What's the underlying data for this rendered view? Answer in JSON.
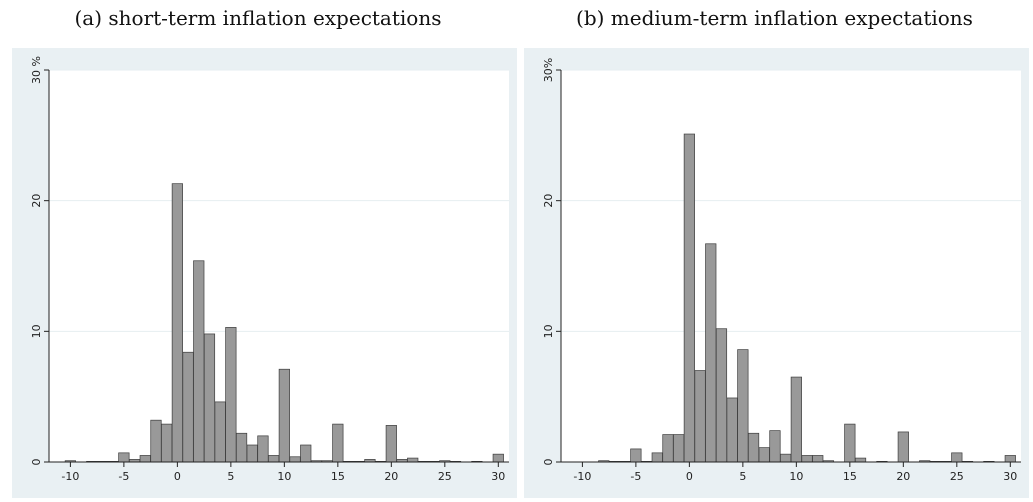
{
  "panels": [
    {
      "title": "(a) short-term inflation expectations"
    },
    {
      "title": "(b) medium-term inflation expectations"
    }
  ],
  "chart_data": [
    {
      "type": "bar",
      "title": "(a) short-term inflation expectations",
      "xlabel": "",
      "ylabel": "",
      "xlim": [
        -12,
        31
      ],
      "ylim": [
        0,
        30
      ],
      "x_ticks": [
        "-10",
        "-5",
        "0",
        "5",
        "10",
        "15",
        "20",
        "25",
        "30"
      ],
      "x_tick_values": [
        -10,
        -5,
        0,
        5,
        10,
        15,
        20,
        25,
        30
      ],
      "y_ticks": [
        "0",
        "10",
        "20",
        "30 %"
      ],
      "y_tick_values": [
        0,
        10,
        20,
        30
      ],
      "grid": true,
      "bar_color": "#999999",
      "x": [
        -10,
        -8,
        -7,
        -6,
        -5,
        -4,
        -3,
        -2,
        -1,
        0,
        1,
        2,
        3,
        4,
        5,
        6,
        7,
        8,
        9,
        10,
        11,
        12,
        13,
        14,
        15,
        16,
        17,
        18,
        19,
        20,
        21,
        22,
        23,
        24,
        25,
        26,
        28,
        30
      ],
      "values": [
        0.1,
        0.05,
        0.05,
        0.05,
        0.7,
        0.2,
        0.5,
        3.2,
        2.9,
        21.3,
        8.4,
        15.4,
        9.8,
        4.6,
        10.3,
        2.2,
        1.3,
        2.0,
        0.5,
        7.1,
        0.4,
        1.3,
        0.1,
        0.1,
        2.9,
        0.05,
        0.05,
        0.2,
        0.05,
        2.8,
        0.2,
        0.3,
        0.05,
        0.05,
        0.1,
        0.05,
        0.05,
        0.6
      ]
    },
    {
      "type": "bar",
      "title": "(b) medium-term inflation expectations",
      "xlabel": "",
      "ylabel": "",
      "xlim": [
        -12,
        31
      ],
      "ylim": [
        0,
        30
      ],
      "x_ticks": [
        "-10",
        "-5",
        "0",
        "5",
        "10",
        "15",
        "20",
        "25",
        "30"
      ],
      "x_tick_values": [
        -10,
        -5,
        0,
        5,
        10,
        15,
        20,
        25,
        30
      ],
      "y_ticks": [
        "0",
        "10",
        "20",
        "30%"
      ],
      "y_tick_values": [
        0,
        10,
        20,
        30
      ],
      "grid": true,
      "bar_color": "#999999",
      "x": [
        -8,
        -7,
        -6,
        -5,
        -4,
        -3,
        -2,
        -1,
        0,
        1,
        2,
        3,
        4,
        5,
        6,
        7,
        8,
        9,
        10,
        11,
        12,
        13,
        15,
        16,
        18,
        20,
        22,
        23,
        24,
        25,
        26,
        28,
        30
      ],
      "values": [
        0.1,
        0.05,
        0.05,
        1.0,
        0.05,
        0.7,
        2.1,
        2.1,
        25.1,
        7.0,
        16.7,
        10.2,
        4.9,
        8.6,
        2.2,
        1.1,
        2.4,
        0.6,
        6.5,
        0.5,
        0.5,
        0.1,
        2.9,
        0.3,
        0.05,
        2.3,
        0.1,
        0.05,
        0.05,
        0.7,
        0.05,
        0.05,
        0.5
      ]
    }
  ]
}
